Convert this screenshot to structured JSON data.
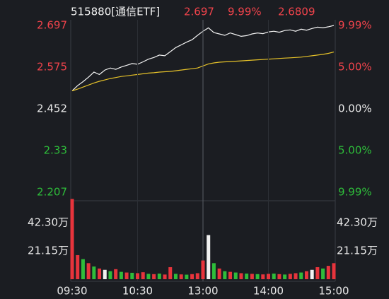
{
  "chart_data": [
    {
      "type": "line",
      "title": "515880[通信ETF]",
      "header": {
        "values": [
          2.697,
          9.99,
          2.6809
        ],
        "value_labels": [
          "2.697",
          "9.99%",
          "2.6809"
        ],
        "colors": [
          "#f0434b",
          "#f0434b",
          "#f0434b"
        ]
      },
      "x": [
        0,
        5,
        10,
        15,
        20,
        25,
        30,
        35,
        40,
        45,
        50,
        55,
        60,
        65,
        70,
        75,
        80,
        85,
        90,
        95,
        100,
        105,
        110,
        115,
        120,
        125,
        130,
        135,
        140,
        145,
        150,
        155,
        160,
        165,
        170,
        175,
        180,
        185,
        190,
        195,
        200,
        205,
        210,
        215,
        220,
        225,
        230,
        235,
        240
      ],
      "xlim": [
        0,
        240
      ],
      "series": [
        {
          "color": "#f2f2f2",
          "values": [
            2.505,
            2.52,
            2.532,
            2.545,
            2.56,
            2.553,
            2.566,
            2.572,
            2.568,
            2.575,
            2.58,
            2.585,
            2.583,
            2.59,
            2.598,
            2.603,
            2.61,
            2.608,
            2.62,
            2.632,
            2.64,
            2.648,
            2.655,
            2.668,
            2.68,
            2.69,
            2.676,
            2.672,
            2.668,
            2.675,
            2.67,
            2.665,
            2.667,
            2.672,
            2.675,
            2.673,
            2.678,
            2.68,
            2.677,
            2.682,
            2.684,
            2.68,
            2.686,
            2.683,
            2.688,
            2.692,
            2.69,
            2.693,
            2.697
          ]
        },
        {
          "color": "#e6c229",
          "values": [
            2.505,
            2.51,
            2.516,
            2.522,
            2.528,
            2.533,
            2.537,
            2.541,
            2.544,
            2.547,
            2.549,
            2.551,
            2.553,
            2.555,
            2.557,
            2.558,
            2.56,
            2.561,
            2.562,
            2.564,
            2.566,
            2.568,
            2.57,
            2.572,
            2.578,
            2.584,
            2.587,
            2.589,
            2.59,
            2.591,
            2.592,
            2.593,
            2.594,
            2.595,
            2.596,
            2.597,
            2.598,
            2.599,
            2.6,
            2.601,
            2.602,
            2.603,
            2.604,
            2.606,
            2.608,
            2.61,
            2.612,
            2.615,
            2.619
          ]
        }
      ],
      "ylim": [
        2.207,
        2.697
      ],
      "yticks": [
        2.697,
        2.575,
        2.452,
        2.33,
        2.207
      ],
      "y2lim": [
        -9.99,
        9.99
      ],
      "y2ticks": [
        {
          "value": 9.99,
          "label": "9.99%"
        },
        {
          "value": 5,
          "label": "5.00%"
        },
        {
          "value": 0,
          "label": "0.00%"
        },
        {
          "value": -5,
          "label": "5.00%"
        },
        {
          "value": -9.99,
          "label": "9.99%"
        }
      ]
    },
    {
      "type": "bar",
      "x": [
        0,
        5,
        10,
        15,
        20,
        25,
        30,
        35,
        40,
        45,
        50,
        55,
        60,
        65,
        70,
        75,
        80,
        85,
        90,
        95,
        100,
        105,
        110,
        115,
        120,
        125,
        130,
        135,
        140,
        145,
        150,
        155,
        160,
        165,
        170,
        175,
        180,
        185,
        190,
        195,
        200,
        205,
        210,
        215,
        220,
        225,
        230,
        235,
        240
      ],
      "xlim": [
        0,
        240
      ],
      "xticks": [
        {
          "value": 0,
          "label": "09:30"
        },
        {
          "value": 60,
          "label": "10:30"
        },
        {
          "value": 120,
          "label": "13:00"
        },
        {
          "value": 180,
          "label": "14:00"
        },
        {
          "value": 240,
          "label": "15:00"
        }
      ],
      "values": [
        600000,
        180000,
        150000,
        120000,
        95000,
        80000,
        70000,
        60000,
        75000,
        55000,
        50000,
        48000,
        45000,
        52000,
        40000,
        38000,
        42000,
        35000,
        90000,
        40000,
        36000,
        34000,
        38000,
        45000,
        140000,
        330000,
        120000,
        80000,
        60000,
        55000,
        50000,
        45000,
        42000,
        40000,
        38000,
        36000,
        40000,
        42000,
        38000,
        35000,
        40000,
        45000,
        50000,
        60000,
        70000,
        90000,
        80000,
        100000,
        120000
      ],
      "colors": [
        "#e8343c",
        "#e8343c",
        "#2ebd3a",
        "#e8343c",
        "#2ebd3a",
        "#e8343c",
        "#f2f2f2",
        "#2ebd3a",
        "#e8343c",
        "#2ebd3a",
        "#e8343c",
        "#2ebd3a",
        "#e8343c",
        "#e8343c",
        "#2ebd3a",
        "#e8343c",
        "#2ebd3a",
        "#e8343c",
        "#e8343c",
        "#2ebd3a",
        "#e8343c",
        "#2ebd3a",
        "#e8343c",
        "#e8343c",
        "#e8343c",
        "#f2f2f2",
        "#2ebd3a",
        "#e8343c",
        "#2ebd3a",
        "#e8343c",
        "#2ebd3a",
        "#e8343c",
        "#2ebd3a",
        "#e8343c",
        "#2ebd3a",
        "#e8343c",
        "#e8343c",
        "#2ebd3a",
        "#e8343c",
        "#2ebd3a",
        "#e8343c",
        "#e8343c",
        "#2ebd3a",
        "#e8343c",
        "#f2f2f2",
        "#e8343c",
        "#2ebd3a",
        "#e8343c",
        "#e8343c"
      ],
      "ylim": [
        0,
        634500
      ],
      "yticks": [
        {
          "value": 423000,
          "label": "42.30万"
        },
        {
          "value": 211500,
          "label": "21.15万"
        }
      ]
    }
  ]
}
